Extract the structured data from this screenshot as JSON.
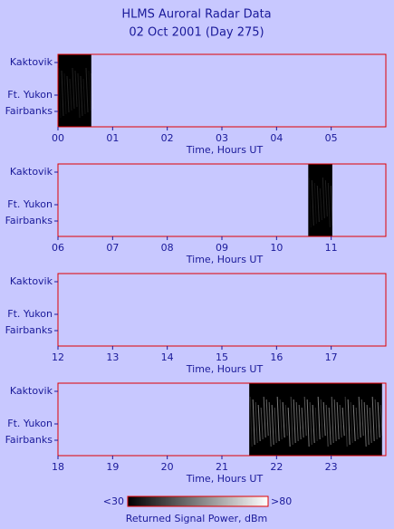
{
  "title": "HLMS Auroral Radar Data",
  "subtitle": "02 Oct 2001 (Day 275)",
  "chart_data": [
    {
      "type": "timeline",
      "x_label": "Time, Hours UT",
      "xlim": [
        0,
        6
      ],
      "xticks": [
        {
          "value": 0,
          "label": "00"
        },
        {
          "value": 1,
          "label": "01"
        },
        {
          "value": 2,
          "label": "02"
        },
        {
          "value": 3,
          "label": "03"
        },
        {
          "value": 4,
          "label": "04"
        },
        {
          "value": 5,
          "label": "05"
        }
      ],
      "y_labels": [
        "Kaktovik",
        "Ft. Yukon",
        "Fairbanks"
      ],
      "color": "#000000",
      "spans": [
        {
          "start": 0,
          "end": 0.61
        }
      ]
    },
    {
      "type": "timeline",
      "x_label": "Time, Hours UT",
      "xlim": [
        6,
        12
      ],
      "xticks": [
        {
          "value": 6,
          "label": "06"
        },
        {
          "value": 7,
          "label": "07"
        },
        {
          "value": 8,
          "label": "08"
        },
        {
          "value": 9,
          "label": "09"
        },
        10,
        11
      ],
      "y_labels": [
        "Kaktovik",
        "Ft. Yukon",
        "Fairbanks"
      ],
      "color": "#000000",
      "spans": [
        {
          "start": 10.58,
          "end": 11.02
        }
      ]
    },
    {
      "type": "timeline",
      "x_label": "Time, Hours UT",
      "xlim": [
        12,
        18
      ],
      "xticks": [
        12,
        13,
        14,
        15,
        16,
        17
      ],
      "y_labels": [
        "Kaktovik",
        "Ft. Yukon",
        "Fairbanks"
      ],
      "color": "#000000",
      "spans": []
    },
    {
      "type": "timeline",
      "x_label": "Time, Hours UT",
      "xlim": [
        18,
        24
      ],
      "xticks": [
        18,
        19,
        20,
        21,
        22,
        23
      ],
      "y_labels": [
        "Kaktovik",
        "Ft. Yukon",
        "Fairbanks"
      ],
      "color": "#000000",
      "spans": [
        {
          "start": 21.5,
          "end": 23.93
        }
      ]
    }
  ],
  "colorbar": {
    "min_label": "<30",
    "max_label": ">80",
    "label": "Returned Signal Power, dBm"
  }
}
